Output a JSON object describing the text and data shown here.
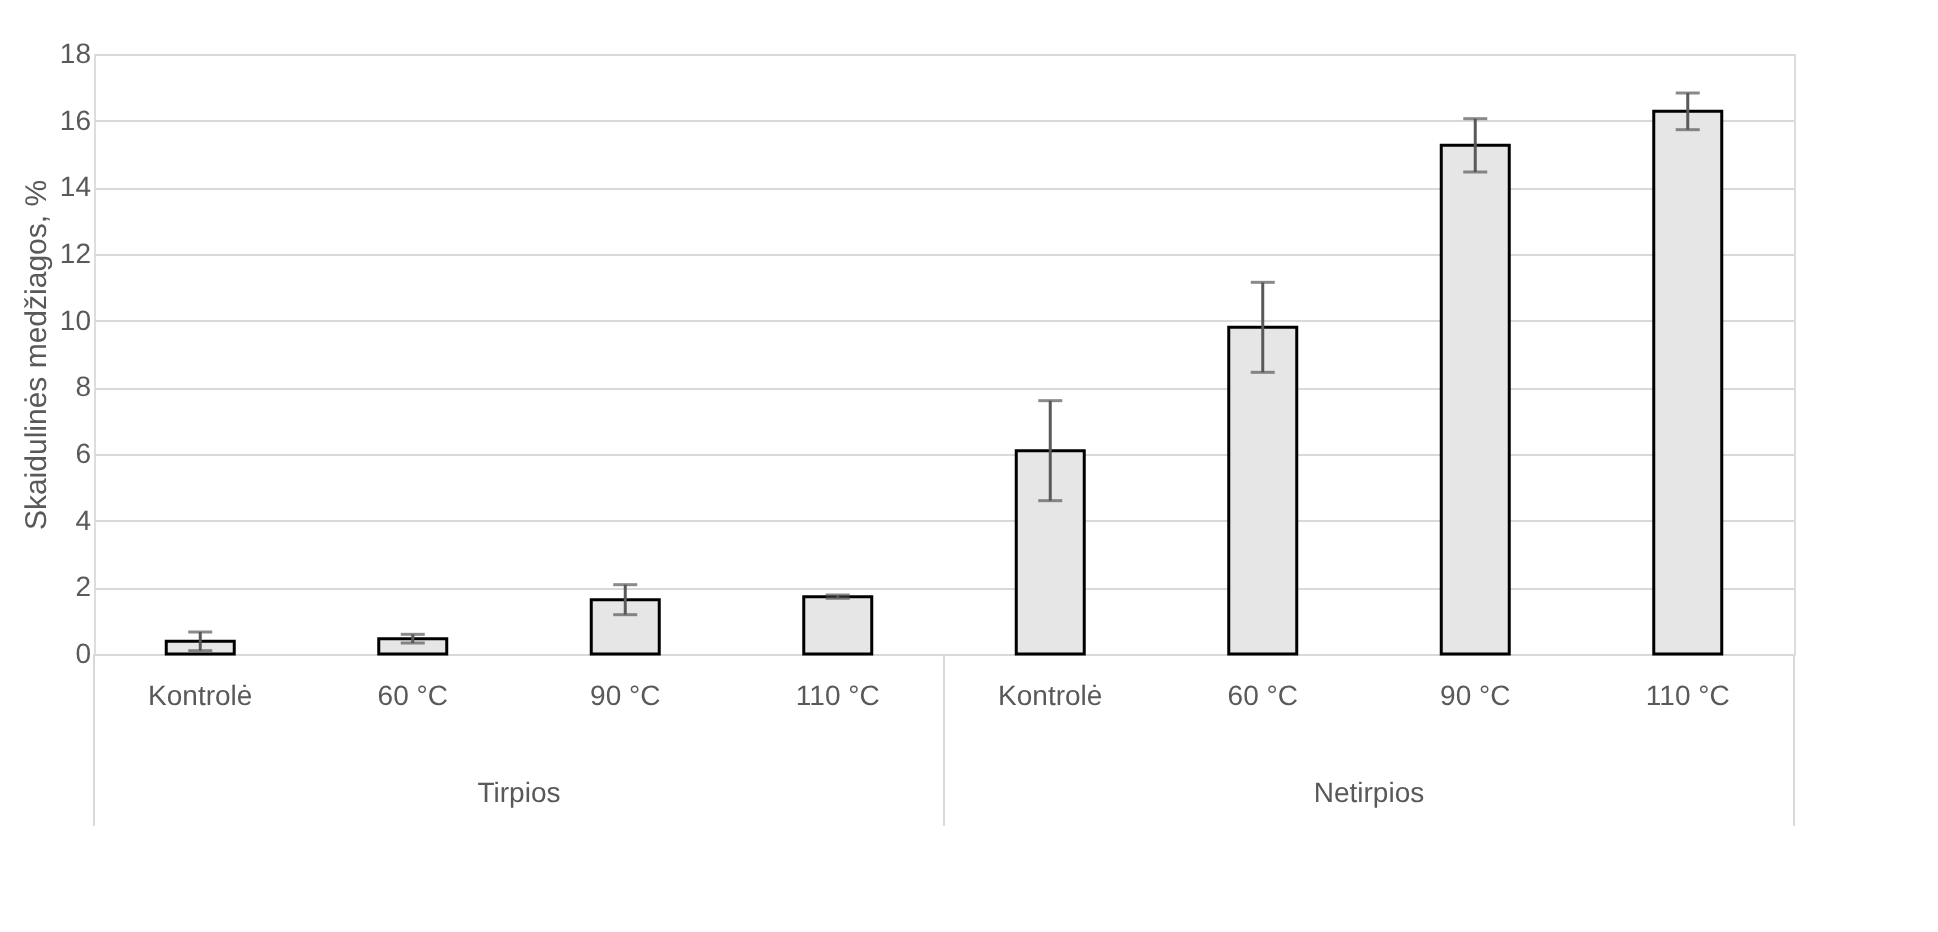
{
  "chart_data": {
    "type": "bar",
    "ylabel": "Skaidulinės medžiagos, %",
    "categories": [
      "Kontrolė",
      "60 °C",
      "90 °C",
      "110 °C",
      "Kontrolė",
      "60 °C",
      "90 °C",
      "110 °C"
    ],
    "series": [
      {
        "color": "#e6e6e6",
        "values": [
          0.38,
          0.46,
          1.63,
          1.72,
          6.1,
          9.8,
          15.26,
          16.28
        ],
        "errors": [
          0.28,
          0.13,
          0.45,
          0.05,
          1.5,
          1.35,
          0.8,
          0.55
        ]
      }
    ],
    "ylim": [
      0,
      18
    ],
    "yticks": [
      0,
      2,
      4,
      6,
      8,
      10,
      12,
      14,
      16,
      18
    ],
    "annotations": [
      "Tirpios",
      "Netirpios"
    ],
    "grid": "y"
  }
}
